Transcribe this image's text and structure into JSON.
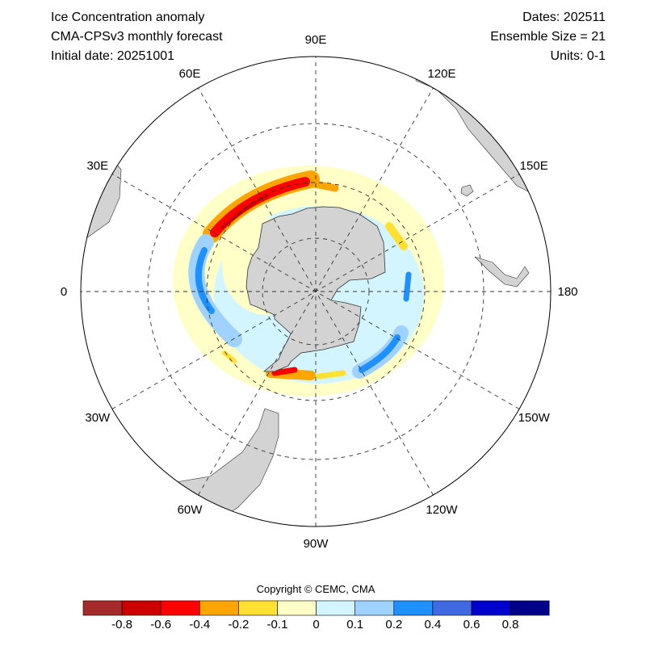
{
  "header": {
    "title": "Ice Concentration anomaly",
    "model": "CMA-CPSv3 monthly forecast",
    "initial_date": "Initial date: 20251001",
    "dates": "Dates: 202511",
    "ensemble": "Ensemble Size = 21",
    "units": "Units: 0-1"
  },
  "map": {
    "projection": "south-polar-stereographic",
    "longitude_labels": [
      "0",
      "30E",
      "60E",
      "90E",
      "120E",
      "150E",
      "180",
      "150W",
      "120W",
      "90W",
      "60W",
      "30W"
    ],
    "land_color": "#d3d3d3"
  },
  "copyright": "Copyright © CEMC, CMA",
  "colorbar": {
    "colors": [
      "#a52a2a",
      "#cd0000",
      "#ff0000",
      "#ffa500",
      "#ffe033",
      "#ffffc8",
      "#d2f5ff",
      "#a0d2ff",
      "#1e90ff",
      "#4169e1",
      "#0000cd",
      "#00008b"
    ],
    "labels": [
      "-0.8",
      "-0.6",
      "-0.4",
      "-0.2",
      "-0.1",
      "0",
      "0.1",
      "0.2",
      "0.4",
      "0.6",
      "0.8"
    ]
  }
}
